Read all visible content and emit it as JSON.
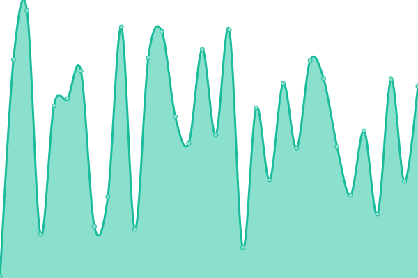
{
  "chart_data": {
    "type": "area",
    "title": "",
    "xlabel": "",
    "ylabel": "",
    "x": [
      0,
      1,
      2,
      3,
      4,
      5,
      6,
      7,
      8,
      9,
      10,
      11,
      12,
      13,
      14,
      15,
      16,
      17,
      18,
      19,
      20,
      21,
      22,
      23,
      24,
      25,
      26,
      27,
      28,
      29,
      30,
      31
    ],
    "values": [
      3,
      314,
      385,
      63,
      248,
      258,
      298,
      74,
      117,
      361,
      70,
      317,
      355,
      232,
      194,
      329,
      206,
      357,
      44,
      245,
      141,
      280,
      187,
      313,
      287,
      189,
      119,
      212,
      92,
      286,
      139,
      276
    ],
    "ylim": [
      0,
      400
    ],
    "xlim": [
      0,
      31
    ],
    "grid": false,
    "axes_visible": false,
    "smooth": true,
    "colors": {
      "line": "#1abc9c",
      "fill": "#8ae0cd",
      "point_fill": "#8ae0cd",
      "point_stroke": "#1abc9c"
    }
  }
}
